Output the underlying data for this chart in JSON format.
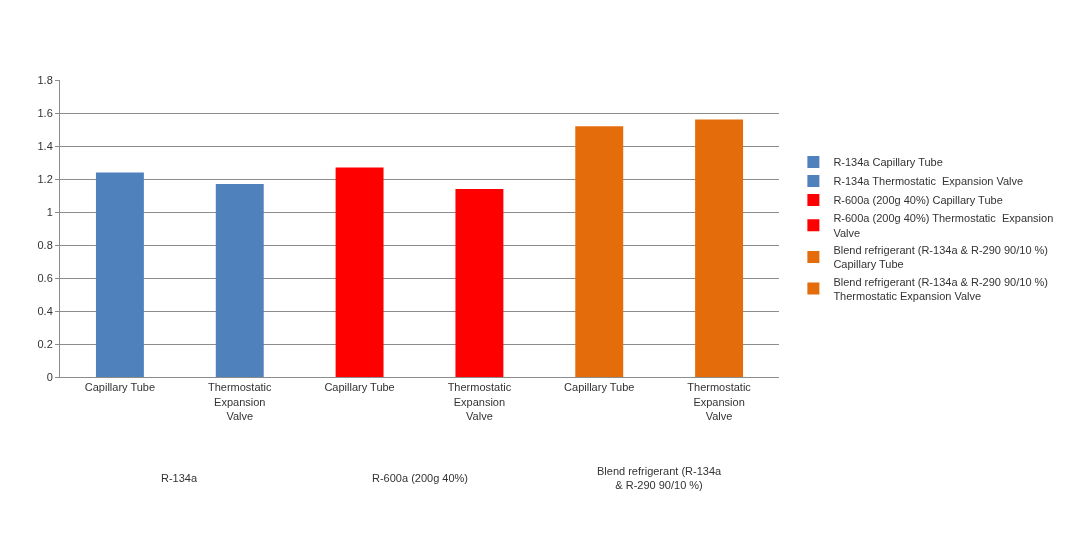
{
  "chart_data": {
    "type": "bar",
    "categories": [
      "Capillary Tube",
      "Thermostatic Expansion Valve",
      "Capillary Tube",
      "Thermostatic Expansion Valve",
      "Capillary Tube",
      "Thermostatic Expansion Valve"
    ],
    "series": [
      {
        "name": "R-134a Capillary Tube",
        "color": "#4f81bd",
        "values": [
          1.24,
          null,
          null,
          null,
          null,
          null
        ]
      },
      {
        "name": "R-134a Thermostatic  Expansion Valve",
        "color": "#4f81bd",
        "values": [
          null,
          1.17,
          null,
          null,
          null,
          null
        ]
      },
      {
        "name": "R-600a (200g 40%) Capillary Tube",
        "color": "#ff0000",
        "values": [
          null,
          null,
          1.27,
          null,
          null,
          null
        ]
      },
      {
        "name": "R-600a (200g 40%) Thermostatic  Expansion Valve",
        "color": "#ff0000",
        "values": [
          null,
          null,
          null,
          1.14,
          null,
          null
        ]
      },
      {
        "name": "Blend refrigerant (R-134a & R-290 90/10 %) Capillary Tube",
        "color": "#e46c0a",
        "values": [
          null,
          null,
          null,
          null,
          1.52,
          null
        ]
      },
      {
        "name": "Blend refrigerant (R-134a & R-290 90/10 %) Thermostatic Expansion Valve",
        "color": "#e46c0a",
        "values": [
          null,
          null,
          null,
          null,
          null,
          1.56
        ]
      }
    ],
    "annotations": [
      "R-134a",
      "R-600a (200g 40%)",
      "Blend refrigerant (R-134a & R-290 90/10 %)"
    ],
    "ylim": [
      0,
      1.8
    ],
    "yticks": [
      0,
      0.2,
      0.4,
      0.6,
      0.8,
      1,
      1.2,
      1.4,
      1.6,
      1.8
    ],
    "grid": "y",
    "legend": "right"
  }
}
